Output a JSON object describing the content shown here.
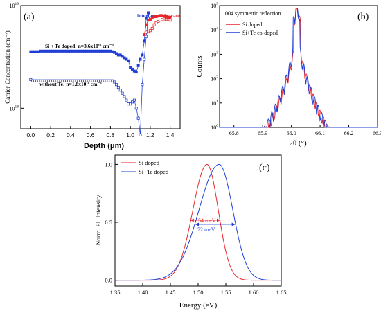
{
  "chart_data": [
    {
      "type": "scatter",
      "panel_label": "(a)",
      "xlabel": "Depth  (μm)",
      "ylabel": "Carrier Concentration  (cm⁻³)",
      "xlim": [
        -0.1,
        1.5
      ],
      "ylim_log10": [
        17.8,
        19.0
      ],
      "y_scale": "log",
      "x_ticks": [
        "0.0",
        "0.2",
        "0.4",
        "0.6",
        "0.8",
        "1.0",
        "1.2",
        "1.4"
      ],
      "y_ticks": [
        {
          "label": "10",
          "exp": "18",
          "value": 1e+18
        },
        {
          "label": "10",
          "exp": "19",
          "value": 1e+19
        }
      ],
      "annotations": [
        {
          "text": "Si + Te doped: n=3.6x10¹⁸ cm⁻³",
          "color": "#000000"
        },
        {
          "text": "without Te: n=1.8x10¹⁸ cm⁻³",
          "color": "#000000"
        },
        {
          "text": "interface",
          "color": "#1f3fd6"
        },
        {
          "text": "substrate",
          "color": "#e8252a"
        }
      ],
      "series": [
        {
          "color": "#1f3fd6",
          "marker": "filled-square",
          "x": [
            0.0,
            0.02,
            0.04,
            0.06,
            0.08,
            0.1,
            0.12,
            0.14,
            0.16,
            0.18,
            0.2,
            0.22,
            0.24,
            0.26,
            0.28,
            0.3,
            0.32,
            0.34,
            0.36,
            0.38,
            0.4,
            0.42,
            0.44,
            0.46,
            0.48,
            0.5,
            0.52,
            0.54,
            0.56,
            0.58,
            0.6,
            0.62,
            0.64,
            0.66,
            0.68,
            0.7,
            0.72,
            0.74,
            0.76,
            0.78,
            0.8,
            0.82,
            0.84,
            0.86,
            0.88,
            0.9,
            0.92,
            0.94,
            0.96,
            0.98,
            1.0,
            1.02,
            1.04,
            1.06,
            1.08,
            1.1,
            1.12,
            1.14,
            1.16,
            1.18
          ],
          "y": [
            3.55e+18,
            3.55e+18,
            3.55e+18,
            3.55e+18,
            3.55e+18,
            3.6e+18,
            3.6e+18,
            3.6e+18,
            3.6e+18,
            3.6e+18,
            3.6e+18,
            3.6e+18,
            3.6e+18,
            3.6e+18,
            3.6e+18,
            3.6e+18,
            3.6e+18,
            3.6e+18,
            3.6e+18,
            3.6e+18,
            3.6e+18,
            3.6e+18,
            3.6e+18,
            3.6e+18,
            3.6e+18,
            3.6e+18,
            3.6e+18,
            3.6e+18,
            3.6e+18,
            3.6e+18,
            3.6e+18,
            3.6e+18,
            3.6e+18,
            3.6e+18,
            3.6e+18,
            3.6e+18,
            3.6e+18,
            3.6e+18,
            3.6e+18,
            3.6e+18,
            3.6e+18,
            3.55e+18,
            3.5e+18,
            3.4e+18,
            3.3e+18,
            3.3e+18,
            3.2e+18,
            3.1e+18,
            3e+18,
            2.9e+18,
            2.5e+18,
            2.4e+18,
            2.3e+18,
            2.25e+18,
            2.6e+18,
            3e+18,
            3.3e+18,
            4.5e+18,
            7.5e+18,
            8.5e+18
          ]
        },
        {
          "color": "#1f3fd6",
          "marker": "open-square",
          "x": [
            0.0,
            0.02,
            0.04,
            0.06,
            0.08,
            0.1,
            0.12,
            0.14,
            0.16,
            0.18,
            0.2,
            0.22,
            0.24,
            0.26,
            0.28,
            0.3,
            0.32,
            0.34,
            0.36,
            0.38,
            0.4,
            0.42,
            0.44,
            0.46,
            0.48,
            0.5,
            0.52,
            0.54,
            0.56,
            0.58,
            0.6,
            0.62,
            0.64,
            0.66,
            0.68,
            0.7,
            0.72,
            0.74,
            0.76,
            0.78,
            0.8,
            0.82,
            0.84,
            0.86,
            0.88,
            0.9,
            0.92,
            0.94,
            0.96,
            0.98,
            1.0,
            1.02,
            1.04,
            1.06,
            1.08,
            1.1,
            1.12,
            1.14,
            1.16,
            1.18
          ],
          "y": [
            1.9e+18,
            1.85e+18,
            1.85e+18,
            1.85e+18,
            1.85e+18,
            1.85e+18,
            1.85e+18,
            1.85e+18,
            1.85e+18,
            1.85e+18,
            1.85e+18,
            1.85e+18,
            1.85e+18,
            1.85e+18,
            1.85e+18,
            1.85e+18,
            1.85e+18,
            1.85e+18,
            1.85e+18,
            1.85e+18,
            1.85e+18,
            1.85e+18,
            1.85e+18,
            1.85e+18,
            1.85e+18,
            1.85e+18,
            1.85e+18,
            1.85e+18,
            1.85e+18,
            1.85e+18,
            1.85e+18,
            1.85e+18,
            1.85e+18,
            1.85e+18,
            1.85e+18,
            1.85e+18,
            1.85e+18,
            1.85e+18,
            1.85e+18,
            1.85e+18,
            1.85e+18,
            1.85e+18,
            1.8e+18,
            1.7e+18,
            1.6e+18,
            1.5e+18,
            1.4e+18,
            1.3e+18,
            1.2e+18,
            1.1e+18,
            1.1e+18,
            1.15e+18,
            1.2e+18,
            1e+18,
            8e+17,
            5.5e+17,
            1.7e+18,
            3e+18,
            5e+18,
            7.5e+18
          ]
        },
        {
          "color": "#e8252a",
          "marker": "filled-square",
          "x": [
            1.14,
            1.16,
            1.18,
            1.2,
            1.22,
            1.24,
            1.26,
            1.28,
            1.3,
            1.32,
            1.34,
            1.36,
            1.38,
            1.4
          ],
          "y": [
            5.2e+18,
            6.5e+18,
            7.2e+18,
            7.3e+18,
            7.6e+18,
            7.8e+18,
            7.8e+18,
            7.9e+18,
            8e+18,
            8e+18,
            7.9e+18,
            7.8e+18,
            7.7e+18,
            7.7e+18
          ]
        },
        {
          "color": "#e8252a",
          "marker": "open-square",
          "x": [
            1.16,
            1.18,
            1.2,
            1.22,
            1.24,
            1.26,
            1.28,
            1.3,
            1.32,
            1.34,
            1.36,
            1.38,
            1.4
          ],
          "y": [
            5.5e+18,
            5.6e+18,
            5.7e+18,
            6e+18,
            6.5e+18,
            6.8e+18,
            7e+18,
            7.2e+18,
            7.3e+18,
            7.4e+18,
            7.3e+18,
            7.3e+18,
            7.2e+18
          ]
        }
      ]
    },
    {
      "type": "line",
      "panel_label": "(b)",
      "title": "004 symmetric reflection",
      "xlabel": "2θ  (°)",
      "ylabel": "Counts",
      "xlim": [
        65.75,
        66.3
      ],
      "ylim_log10": [
        0,
        5
      ],
      "y_scale": "log",
      "x_ticks": [
        "65.8",
        "65.9",
        "66.0",
        "66.1",
        "66.2",
        "66.3"
      ],
      "y_ticks": [
        {
          "label": "10",
          "exp": "0"
        },
        {
          "label": "10",
          "exp": "1"
        },
        {
          "label": "10",
          "exp": "2"
        },
        {
          "label": "10",
          "exp": "3"
        },
        {
          "label": "10",
          "exp": "4"
        },
        {
          "label": "10",
          "exp": "5"
        }
      ],
      "legend_position": "top-left",
      "series": [
        {
          "name": "Si doped",
          "color": "#e8252a"
        },
        {
          "name": "Si+Te co-doped",
          "color": "#1f3fd6"
        }
      ]
    },
    {
      "type": "line",
      "panel_label": "(c)",
      "xlabel": "Energy (eV)",
      "ylabel": "Norm. PL Intensity",
      "xlim": [
        1.35,
        1.65
      ],
      "ylim": [
        -0.05,
        1.08
      ],
      "x_ticks": [
        "1.35",
        "1.40",
        "1.45",
        "1.50",
        "1.55",
        "1.60",
        "1.65"
      ],
      "y_ticks": [
        "0.0",
        "0.5",
        "1.0"
      ],
      "legend_position": "top-left",
      "annotations": [
        {
          "text": "54 meV",
          "color": "#e8252a"
        },
        {
          "text": "72 meV",
          "color": "#1f3fd6"
        }
      ],
      "series": [
        {
          "name": "Si doped",
          "color": "#e8252a",
          "peak": 1.516,
          "fwhm": 0.054
        },
        {
          "name": "Si+Te doped",
          "color": "#1f3fd6",
          "peak": 1.538,
          "fwhm": 0.072
        }
      ]
    }
  ]
}
